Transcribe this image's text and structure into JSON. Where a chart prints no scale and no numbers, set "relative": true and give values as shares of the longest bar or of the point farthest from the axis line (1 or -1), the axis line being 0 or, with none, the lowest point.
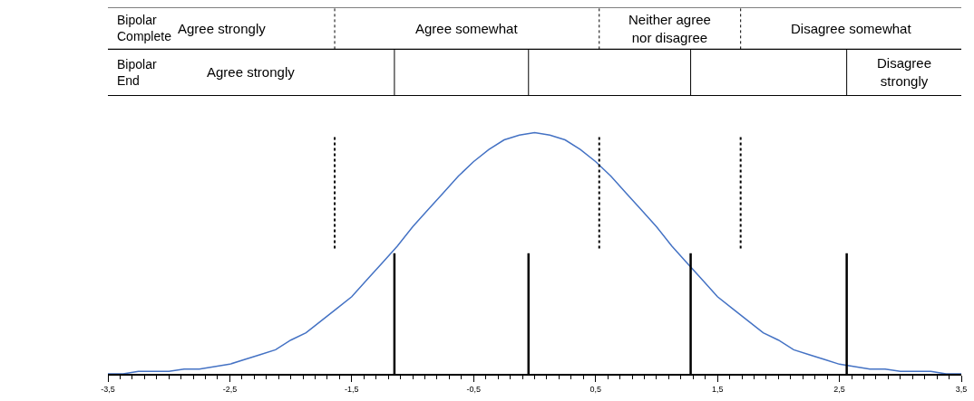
{
  "chart_data": {
    "type": "line",
    "relative": true,
    "x": [
      -3.5,
      -3.375,
      -3.25,
      -3.125,
      -3.0,
      -2.875,
      -2.75,
      -2.625,
      -2.5,
      -2.375,
      -2.25,
      -2.125,
      -2.0,
      -1.875,
      -1.75,
      -1.625,
      -1.5,
      -1.375,
      -1.25,
      -1.125,
      -1.0,
      -0.875,
      -0.75,
      -0.625,
      -0.5,
      -0.375,
      -0.25,
      -0.125,
      0,
      0.125,
      0.25,
      0.375,
      0.5,
      0.625,
      0.75,
      0.875,
      1.0,
      1.125,
      1.25,
      1.375,
      1.5,
      1.625,
      1.75,
      1.875,
      2.0,
      2.125,
      2.25,
      2.375,
      2.5,
      2.625,
      2.75,
      2.875,
      3.0,
      3.125,
      3.25,
      3.375,
      3.5
    ],
    "series": [
      {
        "color": "#4472c4",
        "values": [
          0.0,
          0.0,
          0.01,
          0.01,
          0.01,
          0.02,
          0.02,
          0.03,
          0.04,
          0.06,
          0.08,
          0.1,
          0.14,
          0.17,
          0.22,
          0.27,
          0.32,
          0.39,
          0.46,
          0.53,
          0.61,
          0.68,
          0.75,
          0.82,
          0.88,
          0.93,
          0.97,
          0.99,
          1.0,
          0.99,
          0.97,
          0.93,
          0.88,
          0.82,
          0.75,
          0.68,
          0.61,
          0.53,
          0.46,
          0.39,
          0.32,
          0.27,
          0.22,
          0.17,
          0.14,
          0.1,
          0.08,
          0.06,
          0.04,
          0.03,
          0.02,
          0.02,
          0.01,
          0.01,
          0.01,
          0.0,
          0.0
        ]
      }
    ],
    "xlim": [
      -3.5,
      3.5
    ],
    "xticks": [
      {
        "value": -3.5,
        "label": "-3,5"
      },
      {
        "value": -2.5,
        "label": "-2,5"
      },
      {
        "value": -1.5,
        "label": "-1,5"
      },
      {
        "value": -0.5,
        "label": "-0,5"
      },
      {
        "value": 0.5,
        "label": "0,5"
      },
      {
        "value": 1.5,
        "label": "1,5"
      },
      {
        "value": 2.5,
        "label": "2,5"
      },
      {
        "value": 3.5,
        "label": "3,5"
      }
    ],
    "legend": false,
    "marker": "none",
    "line_style": "solid",
    "ref_lines": [
      {
        "axis": "x",
        "value": -1.64,
        "color": "#000000",
        "line_style": "dotted"
      },
      {
        "axis": "x",
        "value": 0.53,
        "color": "#000000",
        "line_style": "dotted"
      },
      {
        "axis": "x",
        "value": 1.69,
        "color": "#000000",
        "line_style": "dotted"
      },
      {
        "axis": "x",
        "value": -1.15,
        "color": "#000000",
        "line_style": "solid"
      },
      {
        "axis": "x",
        "value": -0.05,
        "color": "#000000",
        "line_style": "solid"
      },
      {
        "axis": "x",
        "value": 1.28,
        "color": "#000000",
        "line_style": "solid"
      },
      {
        "axis": "x",
        "value": 2.56,
        "color": "#000000",
        "line_style": "solid"
      }
    ],
    "annotations": [
      "Bipolar Complete",
      "Agree strongly",
      "Agree somewhat",
      "Neither agree nor disagree",
      "Disagree somewhat",
      "Bipolar End",
      "Agree strongly",
      null,
      null,
      null,
      "Disagree strongly"
    ]
  }
}
